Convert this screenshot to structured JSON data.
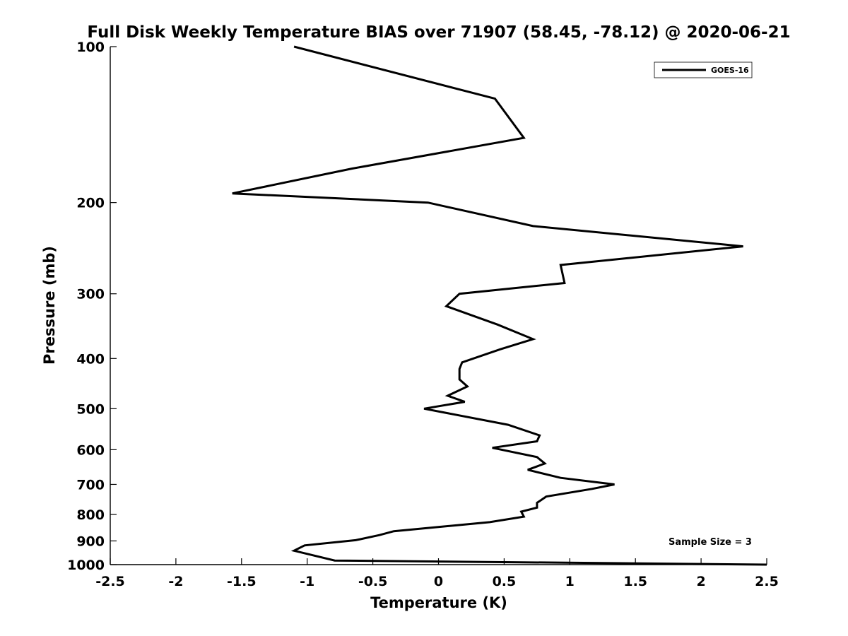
{
  "chart_data": {
    "type": "line",
    "title": "Full Disk Weekly Temperature BIAS over 71907 (58.45, -78.12) @ 2020-06-21",
    "xlabel": "Temperature (K)",
    "ylabel": "Pressure (mb)",
    "xlim": [
      -2.5,
      2.5
    ],
    "ylim": [
      100,
      1000
    ],
    "y_scale": "log",
    "y_reversed": true,
    "x_ticks": [
      "-2.5",
      "-2",
      "-1.5",
      "-1",
      "-0.5",
      "0",
      "0.5",
      "1",
      "1.5",
      "2",
      "2.5"
    ],
    "y_ticks": [
      "100",
      "200",
      "300",
      "400",
      "500",
      "600",
      "700",
      "800",
      "900",
      "1000"
    ],
    "grid": false,
    "legend_position": "top-right",
    "series": [
      {
        "name": "GOES-16",
        "color": "#000000",
        "points": [
          {
            "t": -1.1,
            "p": 100
          },
          {
            "t": 0.43,
            "p": 126
          },
          {
            "t": 0.65,
            "p": 150
          },
          {
            "t": -0.66,
            "p": 172
          },
          {
            "t": -1.57,
            "p": 192
          },
          {
            "t": -0.08,
            "p": 200
          },
          {
            "t": 0.72,
            "p": 222
          },
          {
            "t": 2.32,
            "p": 243
          },
          {
            "t": 0.93,
            "p": 264
          },
          {
            "t": 0.96,
            "p": 286
          },
          {
            "t": 0.16,
            "p": 300
          },
          {
            "t": 0.06,
            "p": 317
          },
          {
            "t": 0.45,
            "p": 344
          },
          {
            "t": 0.72,
            "p": 367
          },
          {
            "t": 0.47,
            "p": 384
          },
          {
            "t": 0.18,
            "p": 407
          },
          {
            "t": 0.16,
            "p": 419
          },
          {
            "t": 0.16,
            "p": 439
          },
          {
            "t": 0.22,
            "p": 453
          },
          {
            "t": 0.07,
            "p": 472
          },
          {
            "t": 0.2,
            "p": 485
          },
          {
            "t": -0.11,
            "p": 500
          },
          {
            "t": 0.53,
            "p": 537
          },
          {
            "t": 0.77,
            "p": 563
          },
          {
            "t": 0.75,
            "p": 578
          },
          {
            "t": 0.41,
            "p": 595
          },
          {
            "t": 0.75,
            "p": 620
          },
          {
            "t": 0.81,
            "p": 638
          },
          {
            "t": 0.68,
            "p": 656
          },
          {
            "t": 0.93,
            "p": 680
          },
          {
            "t": 1.34,
            "p": 700
          },
          {
            "t": 1.17,
            "p": 714
          },
          {
            "t": 0.82,
            "p": 739
          },
          {
            "t": 0.75,
            "p": 760
          },
          {
            "t": 0.75,
            "p": 776
          },
          {
            "t": 0.63,
            "p": 790
          },
          {
            "t": 0.65,
            "p": 808
          },
          {
            "t": 0.39,
            "p": 828
          },
          {
            "t": -0.34,
            "p": 862
          },
          {
            "t": -0.45,
            "p": 877
          },
          {
            "t": -0.63,
            "p": 897
          },
          {
            "t": -1.02,
            "p": 918
          },
          {
            "t": -1.1,
            "p": 940
          },
          {
            "t": -0.79,
            "p": 982
          },
          {
            "t": 2.5,
            "p": 1000
          }
        ]
      }
    ],
    "annotations": [
      "Sample Size = 3"
    ]
  }
}
